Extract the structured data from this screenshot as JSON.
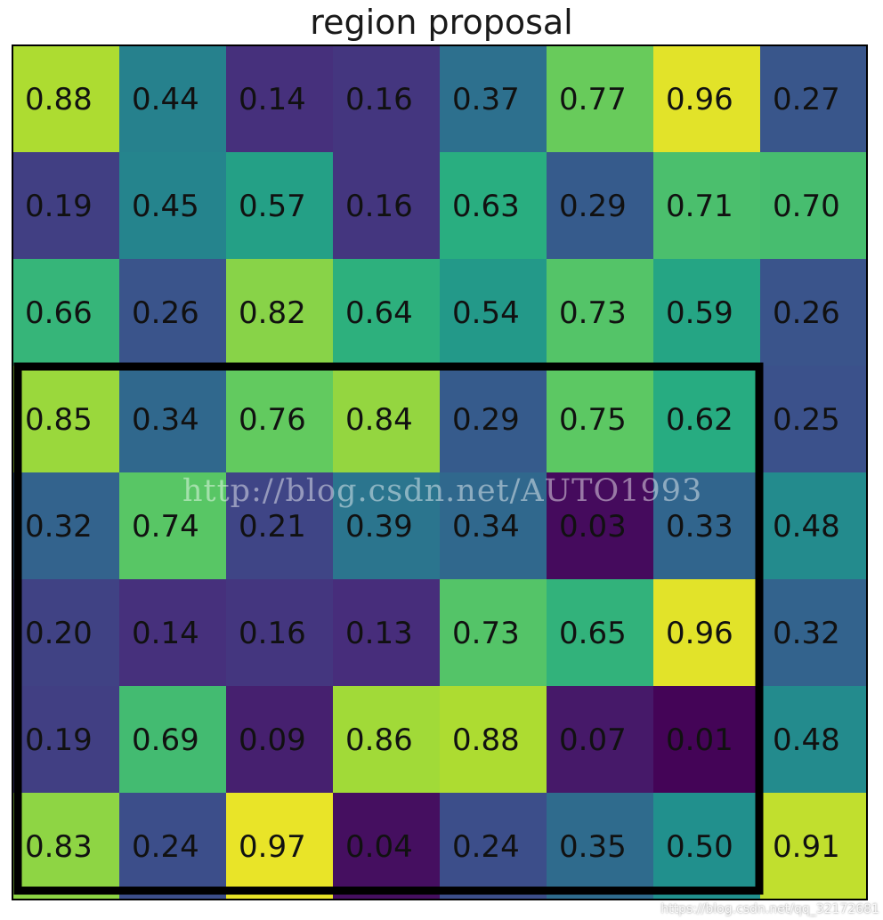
{
  "chart_data": {
    "type": "heatmap",
    "title": "region proposal",
    "colormap": "viridis",
    "value_range": [
      0,
      1
    ],
    "rows": 8,
    "cols": 8,
    "values": [
      [
        "0.88",
        "0.44",
        "0.14",
        "0.16",
        "0.37",
        "0.77",
        "0.96",
        "0.27"
      ],
      [
        "0.19",
        "0.45",
        "0.57",
        "0.16",
        "0.63",
        "0.29",
        "0.71",
        "0.70"
      ],
      [
        "0.66",
        "0.26",
        "0.82",
        "0.64",
        "0.54",
        "0.73",
        "0.59",
        "0.26"
      ],
      [
        "0.85",
        "0.34",
        "0.76",
        "0.84",
        "0.29",
        "0.75",
        "0.62",
        "0.25"
      ],
      [
        "0.32",
        "0.74",
        "0.21",
        "0.39",
        "0.34",
        "0.03",
        "0.33",
        "0.48"
      ],
      [
        "0.20",
        "0.14",
        "0.16",
        "0.13",
        "0.73",
        "0.65",
        "0.96",
        "0.32"
      ],
      [
        "0.19",
        "0.69",
        "0.09",
        "0.86",
        "0.88",
        "0.07",
        "0.01",
        "0.48"
      ],
      [
        "0.83",
        "0.24",
        "0.97",
        "0.04",
        "0.24",
        "0.35",
        "0.50",
        "0.91"
      ]
    ],
    "highlight_region": {
      "row_start": 3,
      "row_end": 7,
      "col_start": 0,
      "col_end": 6
    }
  },
  "watermark": "http://blog.csdn.net/AUTO1993",
  "credit": "https://blog.csdn.net/qq_32172681"
}
